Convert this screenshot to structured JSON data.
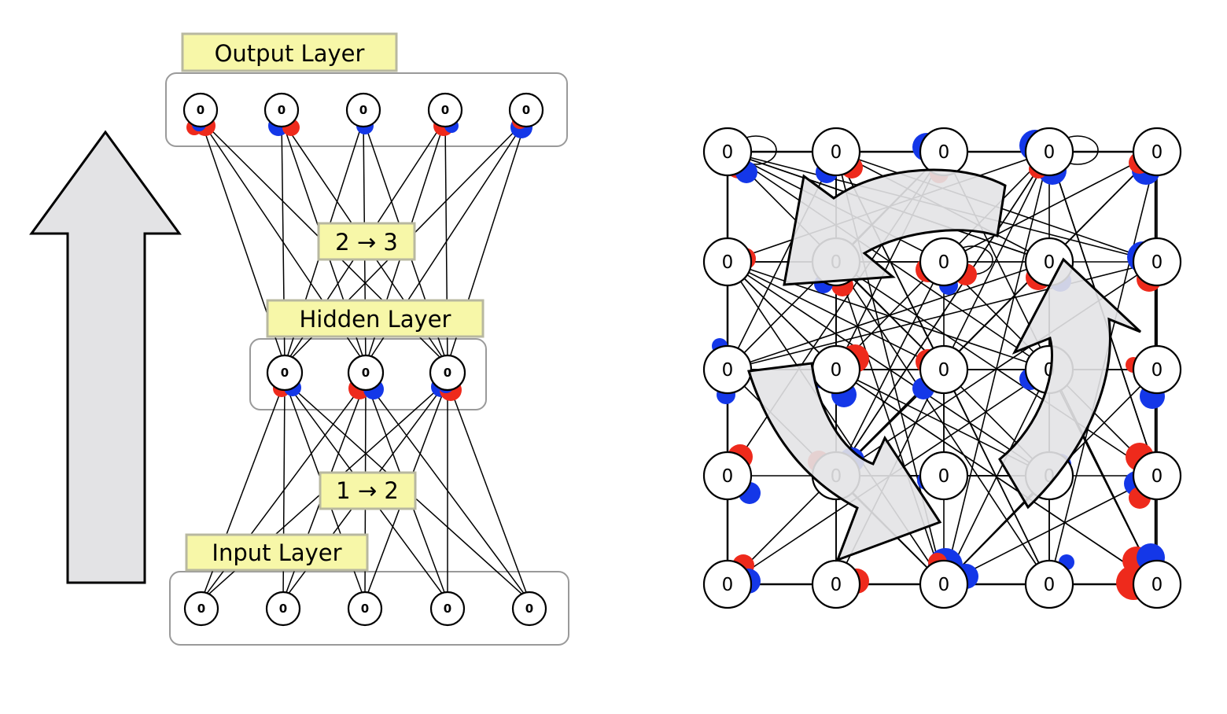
{
  "feedforward": {
    "layers": {
      "output": {
        "label": "Output Layer",
        "nodes": [
          "0",
          "0",
          "0",
          "0",
          "0"
        ]
      },
      "hidden": {
        "label": "Hidden Layer",
        "nodes": [
          "0",
          "0",
          "0"
        ]
      },
      "input": {
        "label": "Input Layer",
        "nodes": [
          "0",
          "0",
          "0",
          "0",
          "0"
        ]
      }
    },
    "projections": {
      "hidden_to_output": "2 → 3",
      "input_to_hidden": "1 → 2"
    }
  },
  "recurrent": {
    "grid_rows": 5,
    "grid_cols": 5,
    "node_value": "0"
  },
  "colors": {
    "label_fill": "#f7f7a8",
    "label_border": "#b8b8a0",
    "positive_weight": "#ee2a1c",
    "negative_weight": "#1437e8",
    "arrow_fill": "#e3e3e5",
    "edge": "#000000",
    "layer_border": "#9a9a9a"
  },
  "icons": {
    "direction_arrow": "up-arrow-icon",
    "cycle_arrows": "cycle-arrows-icon"
  }
}
